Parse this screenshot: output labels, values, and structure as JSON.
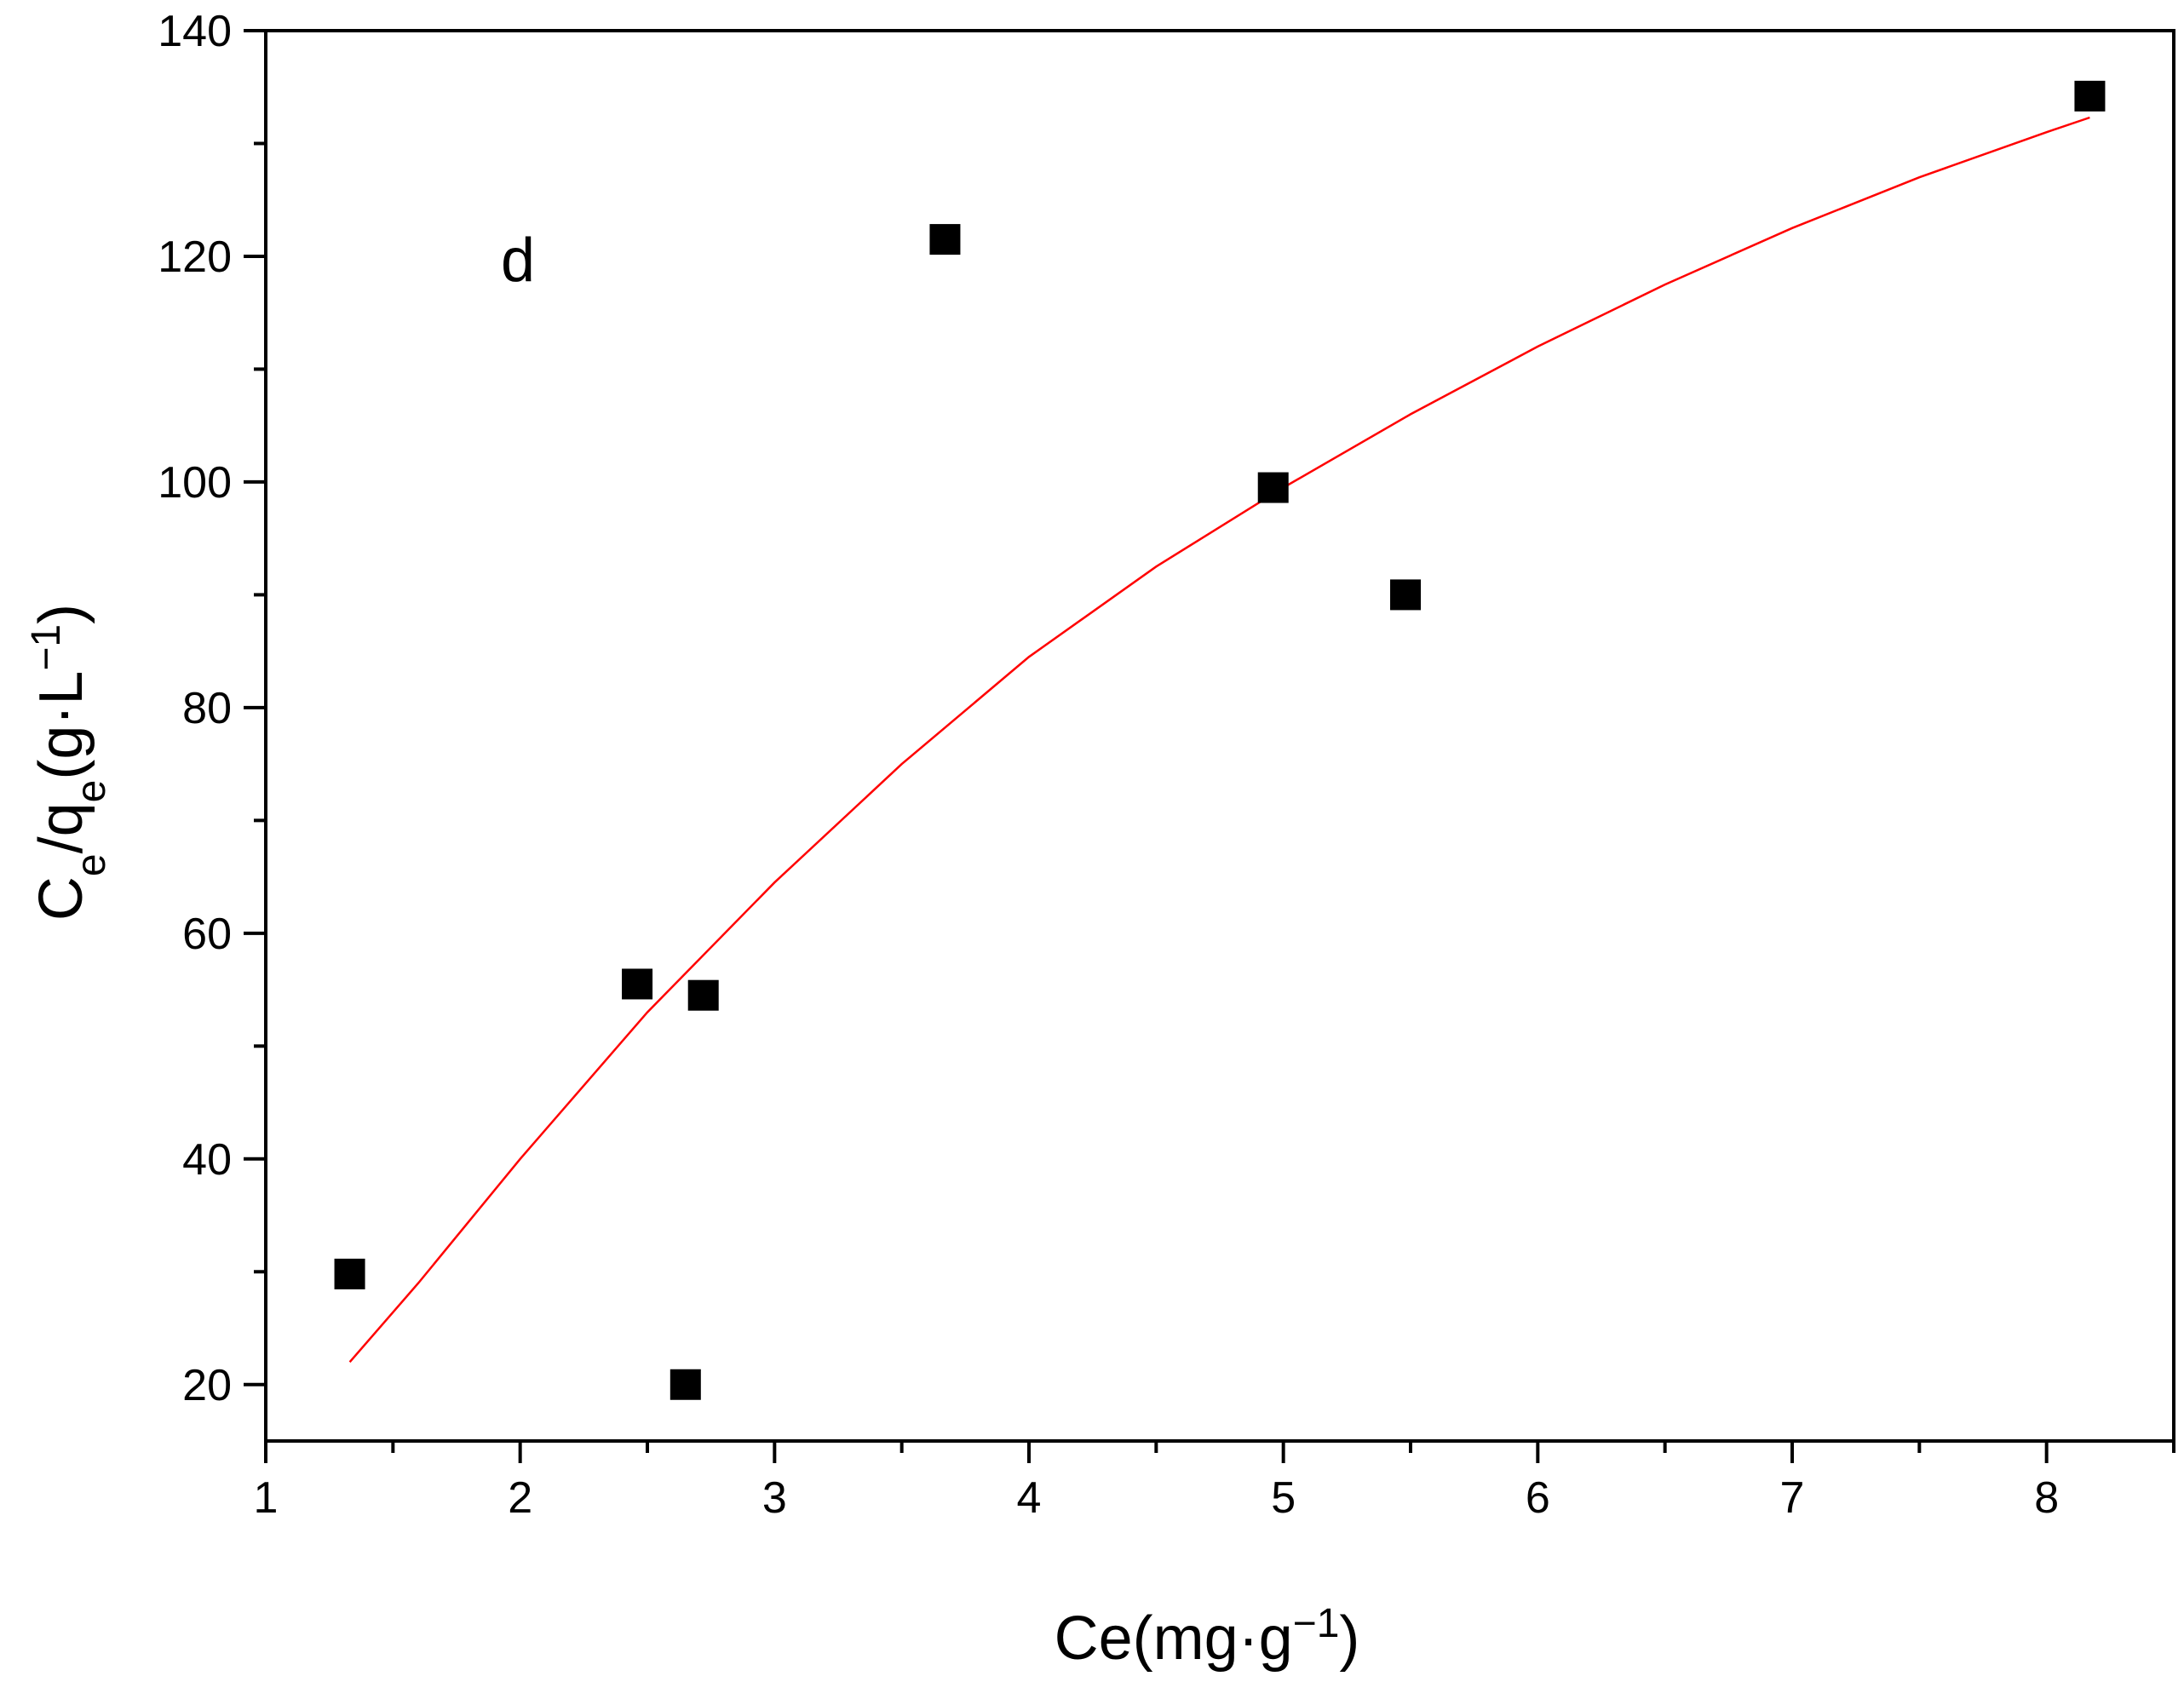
{
  "chart_data": {
    "type": "scatter",
    "title": "",
    "annotation": "d",
    "xlabel": {
      "base": "Ce(mg·g",
      "sup": "−1",
      "close": ")"
    },
    "ylabel": {
      "c": "C",
      "c_sub": "e",
      "slash_q": "/q",
      "q_sub": "e",
      "unit": "(g·L",
      "unit_sup": "−1",
      "close": ")"
    },
    "xlim": [
      1,
      8.5
    ],
    "ylim": [
      15,
      140
    ],
    "x_ticks": [
      1,
      2,
      3,
      4,
      5,
      6,
      7,
      8
    ],
    "x_tick_labels": [
      "1",
      "2",
      "3",
      "4",
      "5",
      "6",
      "7",
      "8"
    ],
    "y_ticks": [
      20,
      40,
      60,
      80,
      100,
      120,
      140
    ],
    "y_tick_labels": [
      "20",
      "40",
      "60",
      "80",
      "100",
      "120",
      "140"
    ],
    "grid": false,
    "points": [
      {
        "x": 1.33,
        "y": 29.8
      },
      {
        "x": 2.46,
        "y": 55.5
      },
      {
        "x": 2.65,
        "y": 20.0
      },
      {
        "x": 2.72,
        "y": 54.5
      },
      {
        "x": 3.67,
        "y": 121.5
      },
      {
        "x": 4.96,
        "y": 99.5
      },
      {
        "x": 5.48,
        "y": 90.0
      },
      {
        "x": 8.17,
        "y": 134.2
      }
    ],
    "fit": [
      {
        "x": 1.33,
        "y": 22.0
      },
      {
        "x": 1.6,
        "y": 29.0
      },
      {
        "x": 2.0,
        "y": 40.0
      },
      {
        "x": 2.5,
        "y": 53.0
      },
      {
        "x": 3.0,
        "y": 64.5
      },
      {
        "x": 3.5,
        "y": 75.0
      },
      {
        "x": 4.0,
        "y": 84.5
      },
      {
        "x": 4.5,
        "y": 92.5
      },
      {
        "x": 5.0,
        "y": 99.5
      },
      {
        "x": 5.5,
        "y": 106.0
      },
      {
        "x": 6.0,
        "y": 112.0
      },
      {
        "x": 6.5,
        "y": 117.5
      },
      {
        "x": 7.0,
        "y": 122.5
      },
      {
        "x": 7.5,
        "y": 127.0
      },
      {
        "x": 8.0,
        "y": 131.0
      },
      {
        "x": 8.17,
        "y": 132.3
      }
    ],
    "marker_color": "#000000",
    "fit_color": "#ff0000"
  }
}
